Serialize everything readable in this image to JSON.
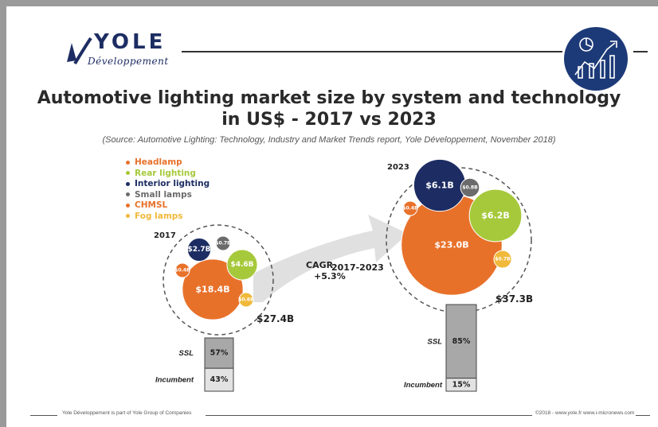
{
  "logo": {
    "word": "YOLE",
    "sub": "Développement"
  },
  "title_line1": "Automotive lighting market size by system and technology",
  "title_line2": "in US$ - 2017 vs 2023",
  "source": "(Source: Automotive Lighting: Technology, Industry and Market Trends report, Yole Développement, November 2018)",
  "legend": [
    {
      "label": "Headlamp",
      "color": "#e8712a"
    },
    {
      "label": "Rear lighting",
      "color": "#a6c93b"
    },
    {
      "label": "Interior lighting",
      "color": "#1d2d63"
    },
    {
      "label": "Small lamps",
      "color": "#6b6b6b"
    },
    {
      "label": "CHMSL",
      "color": "#e8712a"
    },
    {
      "label": "Fog lamps",
      "color": "#f0b93a"
    }
  ],
  "colors": {
    "headlamp": "#e8712a",
    "rear": "#a6c93b",
    "interior": "#1d2d63",
    "small": "#6b6b6b",
    "chmsl": "#e8712a",
    "fog": "#f0b93a",
    "bar_dark": "#a8a8a8",
    "bar_light": "#e2e2e2",
    "arrow": "#e0e0e0"
  },
  "cagr_label": "CAGR",
  "cagr_sub": "2017-2023",
  "cagr_value": "+5.3%",
  "footer_left": "Yole Développement is part of Yole Group of Companies",
  "footer_right": "©2018 - www.yole.fr   www.i-micronews.com",
  "chart_data": [
    {
      "type": "bubble",
      "year": "2017",
      "total_label": "$27.4B",
      "series": [
        {
          "name": "Headlamp",
          "value": 18.4,
          "label": "$18.4B"
        },
        {
          "name": "Rear lighting",
          "value": 4.6,
          "label": "$4.6B"
        },
        {
          "name": "Interior lighting",
          "value": 2.7,
          "label": "$2.7B"
        },
        {
          "name": "Small lamps",
          "value": 0.7,
          "label": "$0.7B"
        },
        {
          "name": "CHMSL",
          "value": 0.4,
          "label": "$0.4B"
        },
        {
          "name": "Fog lamps",
          "value": 0.6,
          "label": "$0.6B"
        }
      ],
      "technology_split": [
        {
          "name": "SSL",
          "value": 57,
          "label": "57%"
        },
        {
          "name": "Incumbent",
          "value": 43,
          "label": "43%"
        }
      ]
    },
    {
      "type": "bubble",
      "year": "2023",
      "total_label": "$37.3B",
      "series": [
        {
          "name": "Headlamp",
          "value": 23.0,
          "label": "$23.0B"
        },
        {
          "name": "Rear lighting",
          "value": 6.2,
          "label": "$6.2B"
        },
        {
          "name": "Interior lighting",
          "value": 6.1,
          "label": "$6.1B"
        },
        {
          "name": "Small lamps",
          "value": 0.8,
          "label": "$0.8B"
        },
        {
          "name": "CHMSL",
          "value": 0.4,
          "label": "$0.4B"
        },
        {
          "name": "Fog lamps",
          "value": 0.7,
          "label": "$0.7B"
        }
      ],
      "technology_split": [
        {
          "name": "SSL",
          "value": 85,
          "label": "85%"
        },
        {
          "name": "Incumbent",
          "value": 15,
          "label": "15%"
        }
      ]
    }
  ]
}
